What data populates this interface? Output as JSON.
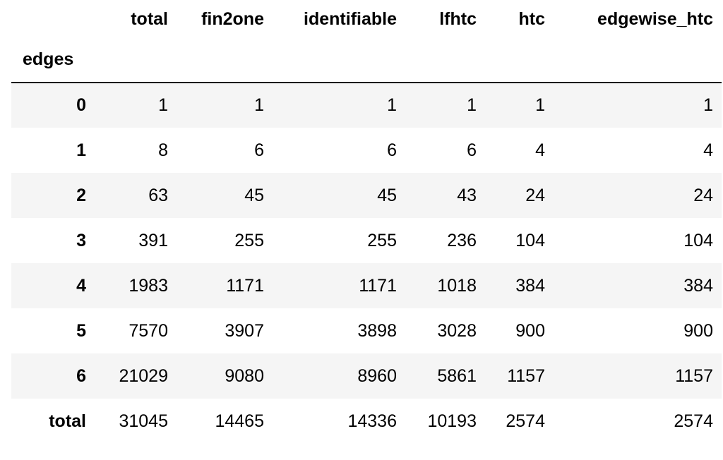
{
  "table": {
    "columns": [
      "total",
      "fin2one",
      "identifiable",
      "lfhtc",
      "htc",
      "edgewise_htc"
    ],
    "index_name": "edges",
    "rows": [
      {
        "index": "0",
        "values": [
          "1",
          "1",
          "1",
          "1",
          "1",
          "1"
        ]
      },
      {
        "index": "1",
        "values": [
          "8",
          "6",
          "6",
          "6",
          "4",
          "4"
        ]
      },
      {
        "index": "2",
        "values": [
          "63",
          "45",
          "45",
          "43",
          "24",
          "24"
        ]
      },
      {
        "index": "3",
        "values": [
          "391",
          "255",
          "255",
          "236",
          "104",
          "104"
        ]
      },
      {
        "index": "4",
        "values": [
          "1983",
          "1171",
          "1171",
          "1018",
          "384",
          "384"
        ]
      },
      {
        "index": "5",
        "values": [
          "7570",
          "3907",
          "3898",
          "3028",
          "900",
          "900"
        ]
      },
      {
        "index": "6",
        "values": [
          "21029",
          "9080",
          "8960",
          "5861",
          "1157",
          "1157"
        ]
      },
      {
        "index": "total",
        "values": [
          "31045",
          "14465",
          "14336",
          "10193",
          "2574",
          "2574"
        ]
      }
    ]
  }
}
